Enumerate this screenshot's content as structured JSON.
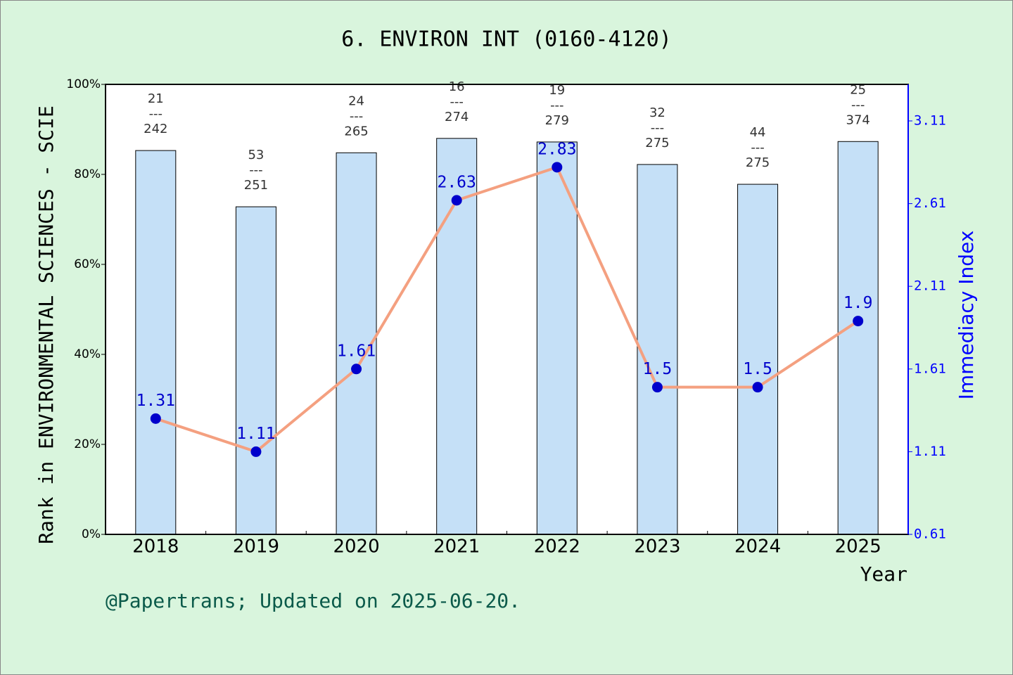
{
  "chart_data": {
    "type": "combo",
    "title": "6. ENVIRON INT (0160-4120)",
    "y_label": "Rank in ENVIRONMENTAL SCIENCES - SCIE",
    "y2_label": "Immediacy Index",
    "x_label": "Year",
    "footer": "@Papertrans; Updated on 2025-06-20.",
    "categories": [
      "2018",
      "2019",
      "2020",
      "2021",
      "2022",
      "2023",
      "2024",
      "2025"
    ],
    "ylim": [
      0,
      100
    ],
    "yticks": [
      {
        "value": 0,
        "label": "0%"
      },
      {
        "value": 20,
        "label": "20%"
      },
      {
        "value": 40,
        "label": "40%"
      },
      {
        "value": 60,
        "label": "60%"
      },
      {
        "value": 80,
        "label": "80%"
      },
      {
        "value": 100,
        "label": "100%"
      }
    ],
    "y2lim": [
      0.61,
      3.331
    ],
    "y2ticks": [
      0.61,
      1.11,
      1.61,
      2.11,
      2.61,
      3.11
    ],
    "series": [
      {
        "type": "bar",
        "color": "#c5e0f7",
        "values": [
          85.3,
          72.8,
          84.8,
          88.0,
          87.2,
          82.2,
          77.8,
          87.3
        ],
        "bar_labels": [
          [
            "21",
            "---",
            "242"
          ],
          [
            "53",
            "---",
            "251"
          ],
          [
            "24",
            "---",
            "265"
          ],
          [
            "16",
            "---",
            "274"
          ],
          [
            "19",
            "---",
            "279"
          ],
          [
            "32",
            "---",
            "275"
          ],
          [
            "44",
            "---",
            "275"
          ],
          [
            "25",
            "---",
            "374"
          ]
        ]
      },
      {
        "type": "line",
        "axis": "y2",
        "color": "#f4a080",
        "marker_color": "#0000cc",
        "values": [
          1.31,
          1.11,
          1.61,
          2.63,
          2.83,
          1.5,
          1.5,
          1.9
        ]
      }
    ]
  }
}
